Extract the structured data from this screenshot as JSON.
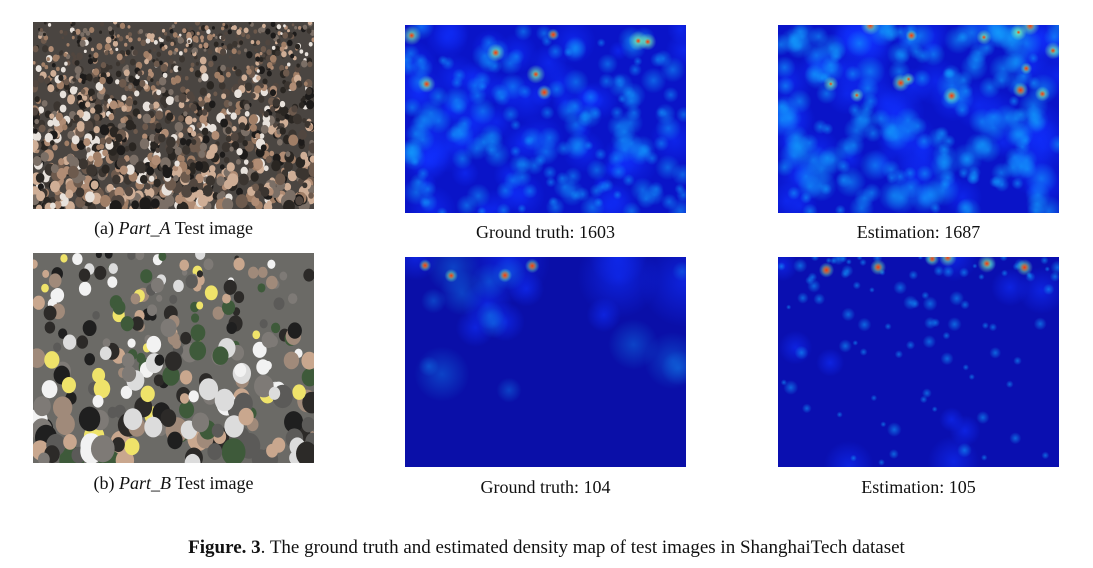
{
  "figure": {
    "label": "Figure. 3",
    "caption": ". The ground truth and estimated density map of test images in ShanghaiTech dataset"
  },
  "rows": [
    {
      "id": "part-a",
      "image_caption_prefix": "(a) ",
      "image_caption_part": "Part_A",
      "image_caption_suffix": " Test image",
      "ground_truth_label": "Ground truth: 1603",
      "estimation_label": "Estimation: 1687",
      "ground_truth_count": 1603,
      "estimation_count": 1687
    },
    {
      "id": "part-b",
      "image_caption_prefix": "(b) ",
      "image_caption_part": "Part_B",
      "image_caption_suffix": " Test image",
      "ground_truth_label": "Ground truth: 104",
      "estimation_label": "Estimation: 105",
      "ground_truth_count": 104,
      "estimation_count": 105
    }
  ],
  "colors": {
    "density_low": "#0a14c8",
    "density_mid": "#00e0ff",
    "density_high": "#ff2000",
    "crowd_base": "#4a4541"
  }
}
